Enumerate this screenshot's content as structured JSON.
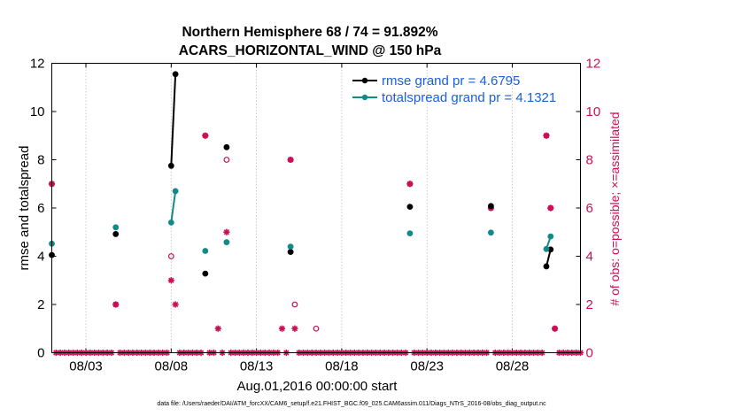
{
  "chart_data": {
    "type": "line",
    "title_line1": "Northern Hemisphere 68 / 74 = 91.892%",
    "title_line2": "ACARS_HORIZONTAL_WIND @ 150 hPa",
    "xlabel": "Aug.01,2016 00:00:00 start",
    "ylabel": "rmse and totalspread",
    "ylabel_right": "# of obs: o=possible; ×=assimilated",
    "footer": "data file: /Users/raeder/DAI/ATM_forcXX/CAM6_setup/f.e21.FHIST_BGC.f09_025.CAM6assim.011/Diags_NTrS_2016-08/obs_diag_output.nc",
    "xlim": [
      0,
      31
    ],
    "ylim": [
      0,
      12
    ],
    "ylim_right": [
      0,
      12
    ],
    "x_ticks": [
      {
        "value": 2,
        "label": "08/03"
      },
      {
        "value": 7,
        "label": "08/08"
      },
      {
        "value": 12,
        "label": "08/13"
      },
      {
        "value": 17,
        "label": "08/18"
      },
      {
        "value": 22,
        "label": "08/23"
      },
      {
        "value": 27,
        "label": "08/28"
      }
    ],
    "y_ticks": [
      "0",
      "2",
      "4",
      "6",
      "8",
      "10",
      "12"
    ],
    "y_ticks_right": [
      "0",
      "2",
      "4",
      "6",
      "8",
      "10",
      "12"
    ],
    "legend": {
      "placement": "top-right",
      "entries": [
        {
          "label": "rmse grand pr = 4.6795",
          "color": "#000000"
        },
        {
          "label": "totalspread grand pr = 4.1321",
          "color": "#138a8a"
        }
      ]
    },
    "series": [
      {
        "name": "rmse",
        "color": "#000000",
        "segments": [
          [
            [
              0.0,
              4.05
            ]
          ],
          [
            [
              3.75,
              4.92
            ]
          ],
          [
            [
              7.0,
              7.75
            ],
            [
              7.25,
              11.55
            ]
          ],
          [
            [
              9.0,
              3.28
            ]
          ],
          [
            [
              10.25,
              8.52
            ]
          ],
          [
            [
              14.0,
              4.18
            ]
          ],
          [
            [
              21.0,
              6.05
            ]
          ],
          [
            [
              25.75,
              6.08
            ]
          ],
          [
            [
              29.0,
              3.58
            ],
            [
              29.25,
              4.28
            ]
          ]
        ]
      },
      {
        "name": "totalspread",
        "color": "#138a8a",
        "segments": [
          [
            [
              0.0,
              4.52
            ]
          ],
          [
            [
              3.75,
              5.2
            ]
          ],
          [
            [
              7.0,
              5.4
            ],
            [
              7.25,
              6.7
            ]
          ],
          [
            [
              9.0,
              4.22
            ]
          ],
          [
            [
              10.25,
              4.58
            ]
          ],
          [
            [
              14.0,
              4.4
            ]
          ],
          [
            [
              21.0,
              4.95
            ]
          ],
          [
            [
              25.75,
              4.98
            ]
          ],
          [
            [
              29.0,
              4.3
            ],
            [
              29.25,
              4.82
            ]
          ]
        ]
      }
    ],
    "obs_possible": {
      "color": "#cc0e55",
      "points": [
        [
          0.0,
          7
        ],
        [
          3.75,
          2
        ],
        [
          7.0,
          4
        ],
        [
          9.0,
          9
        ],
        [
          10.25,
          8
        ],
        [
          14.0,
          8
        ],
        [
          14.25,
          2
        ],
        [
          15.5,
          1
        ],
        [
          21.0,
          7
        ],
        [
          25.75,
          6
        ],
        [
          29.0,
          9
        ],
        [
          29.25,
          6
        ],
        [
          29.5,
          1
        ]
      ]
    },
    "obs_assimilated": {
      "color": "#cc0e55",
      "points": [
        [
          0.0,
          7
        ],
        [
          3.75,
          2
        ],
        [
          7.0,
          3
        ],
        [
          7.25,
          2
        ],
        [
          9.0,
          9
        ],
        [
          9.75,
          1
        ],
        [
          10.25,
          5
        ],
        [
          13.5,
          1
        ],
        [
          14.0,
          8
        ],
        [
          14.25,
          1
        ],
        [
          21.0,
          7
        ],
        [
          25.75,
          6
        ],
        [
          29.0,
          9
        ],
        [
          29.25,
          6
        ],
        [
          29.5,
          1
        ]
      ],
      "zero_rows": [
        [
          0.25,
          31.0,
          0.25
        ]
      ]
    }
  }
}
